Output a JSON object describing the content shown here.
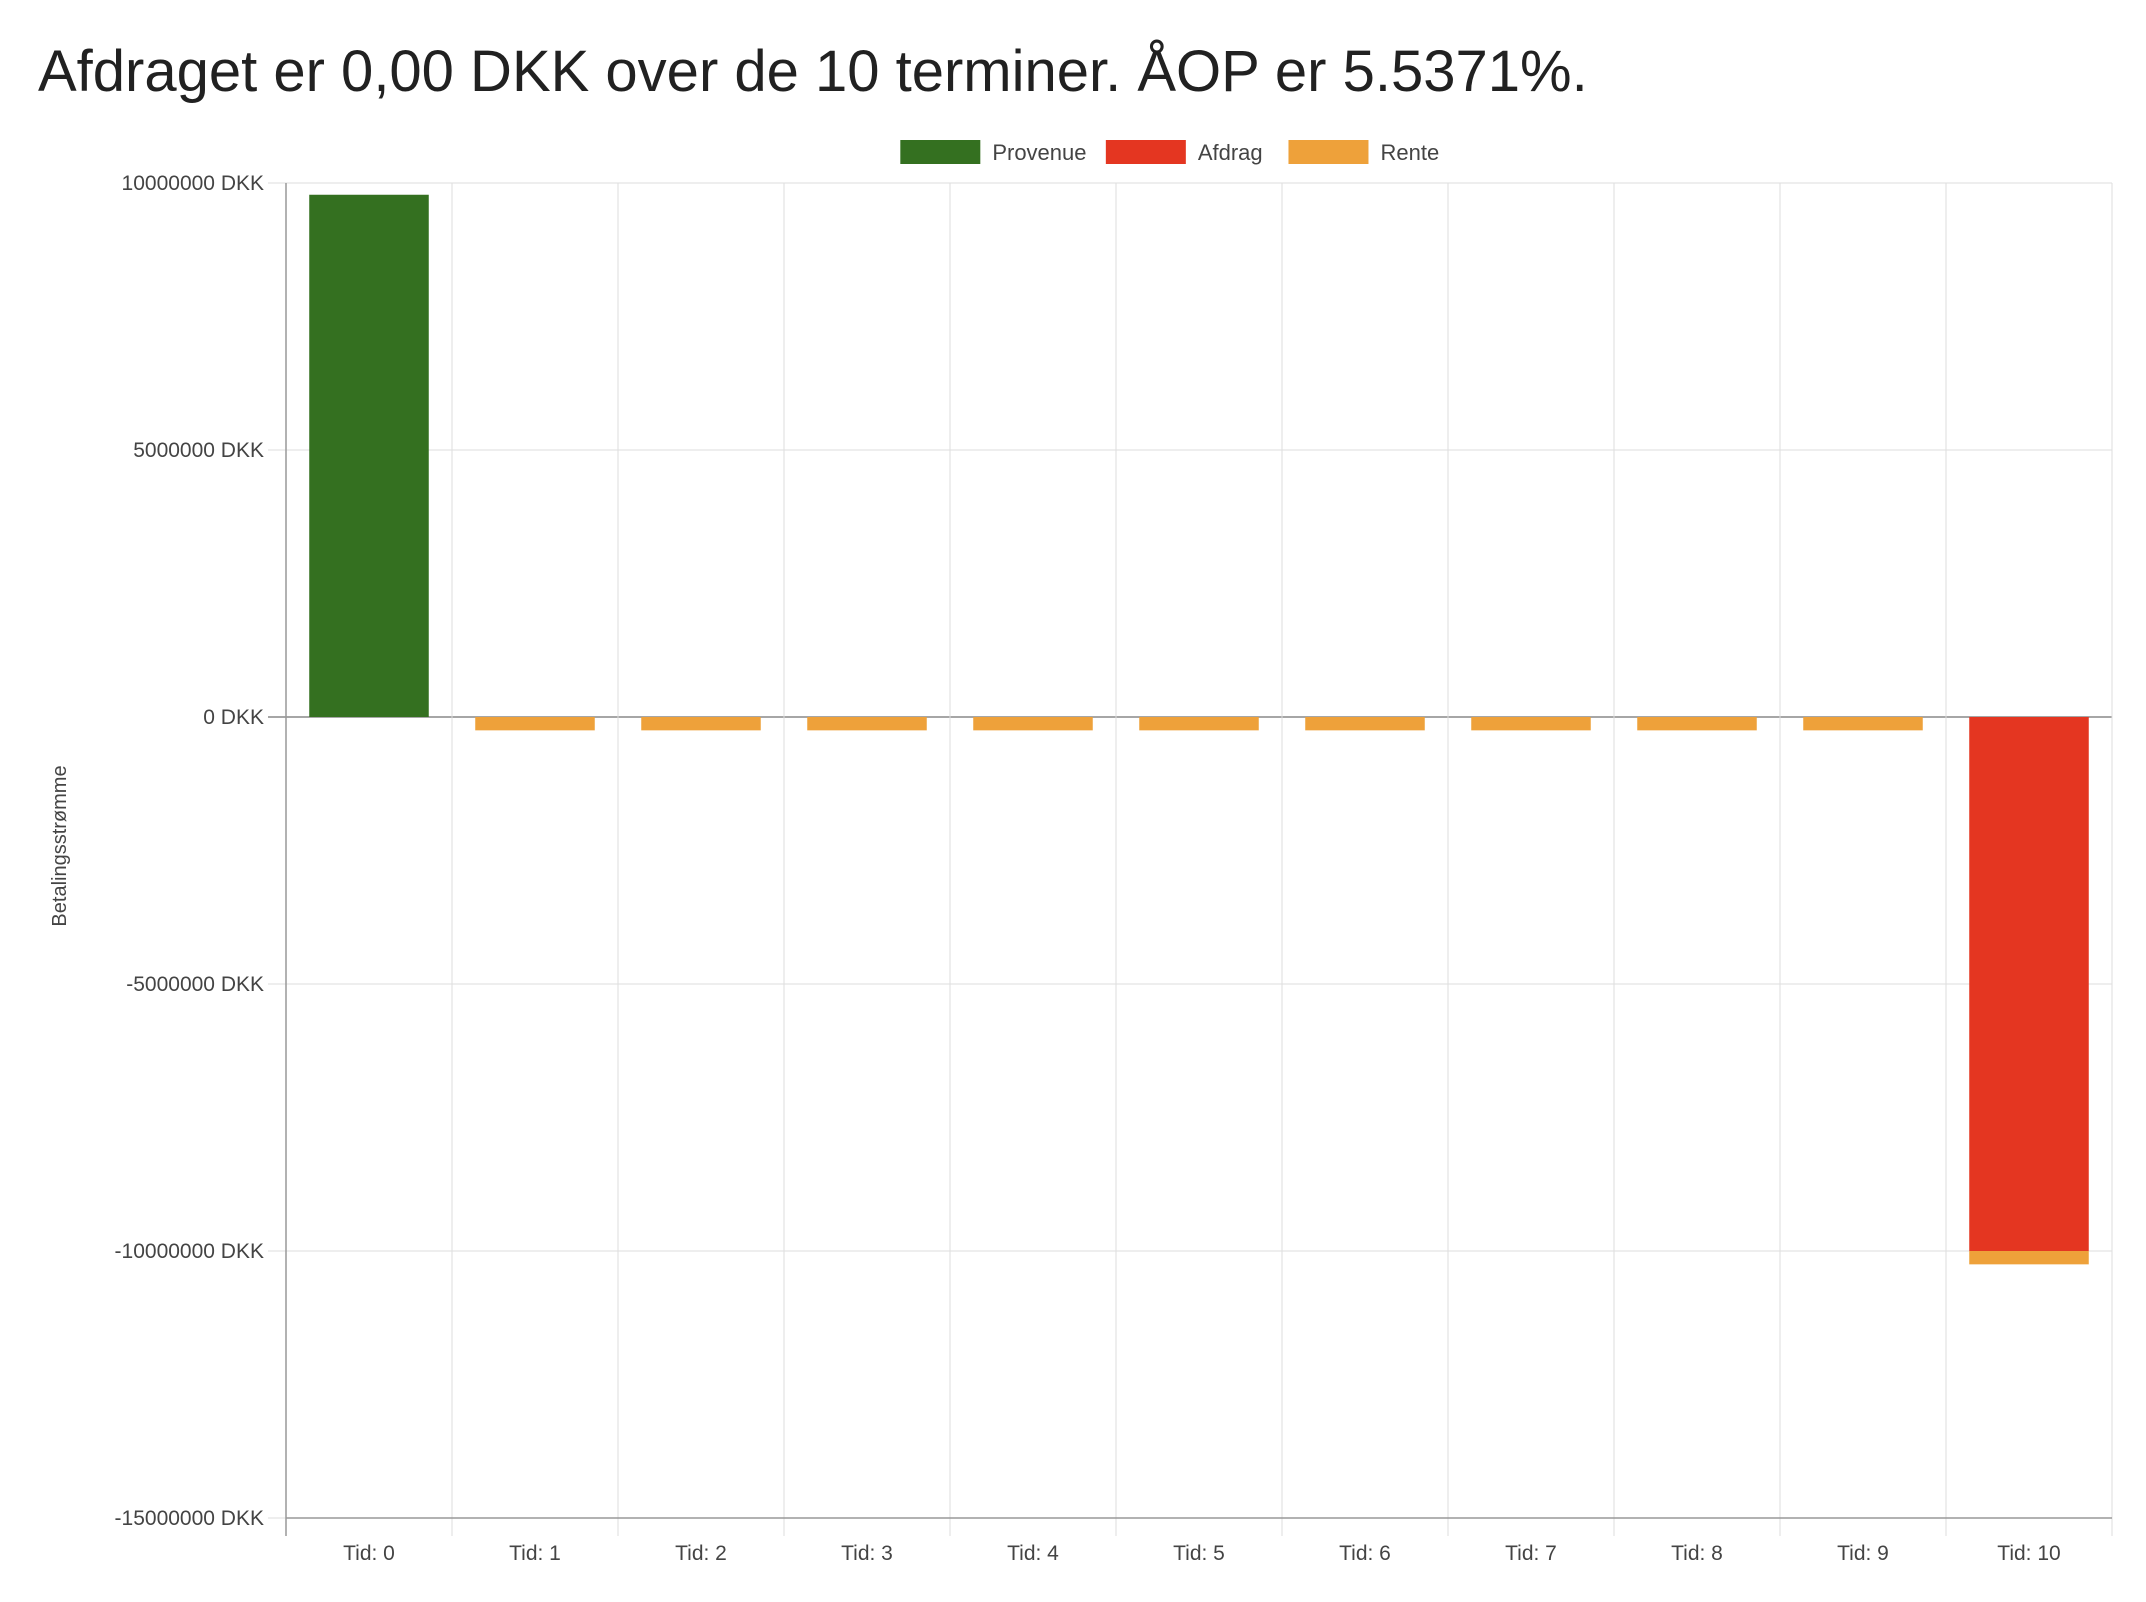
{
  "page": {
    "title": "Afdraget er 0,00 DKK over de 10 terminer. ÅOP er 5.5371%."
  },
  "chart_data": {
    "type": "bar",
    "stacked": true,
    "categories": [
      "Tid: 0",
      "Tid: 1",
      "Tid: 2",
      "Tid: 3",
      "Tid: 4",
      "Tid: 5",
      "Tid: 6",
      "Tid: 7",
      "Tid: 8",
      "Tid: 9",
      "Tid: 10"
    ],
    "series": [
      {
        "name": "Provenue",
        "color": "#347020",
        "values": [
          9780000,
          0,
          0,
          0,
          0,
          0,
          0,
          0,
          0,
          0,
          0
        ]
      },
      {
        "name": "Afdrag",
        "color": "#E43621",
        "values": [
          0,
          0,
          0,
          0,
          0,
          0,
          0,
          0,
          0,
          0,
          -10000000
        ]
      },
      {
        "name": "Rente",
        "color": "#EEA13A",
        "values": [
          0,
          -250000,
          -250000,
          -250000,
          -250000,
          -250000,
          -250000,
          -250000,
          -250000,
          -250000,
          -250000
        ]
      }
    ],
    "ylabel": "Betalingsstrømme",
    "xlabel": "",
    "ylim": [
      -15000000,
      10000000
    ],
    "yticks": [
      {
        "value": 10000000,
        "label": "10000000 DKK"
      },
      {
        "value": 5000000,
        "label": "5000000 DKK"
      },
      {
        "value": 0,
        "label": "0 DKK"
      },
      {
        "value": -5000000,
        "label": "-5000000 DKK"
      },
      {
        "value": -10000000,
        "label": "-10000000 DKK"
      },
      {
        "value": -15000000,
        "label": "-15000000 DKK"
      }
    ],
    "legend_position": "top-center",
    "grid": true,
    "gridColor": "#dddddd",
    "axisColor": "#999999"
  }
}
